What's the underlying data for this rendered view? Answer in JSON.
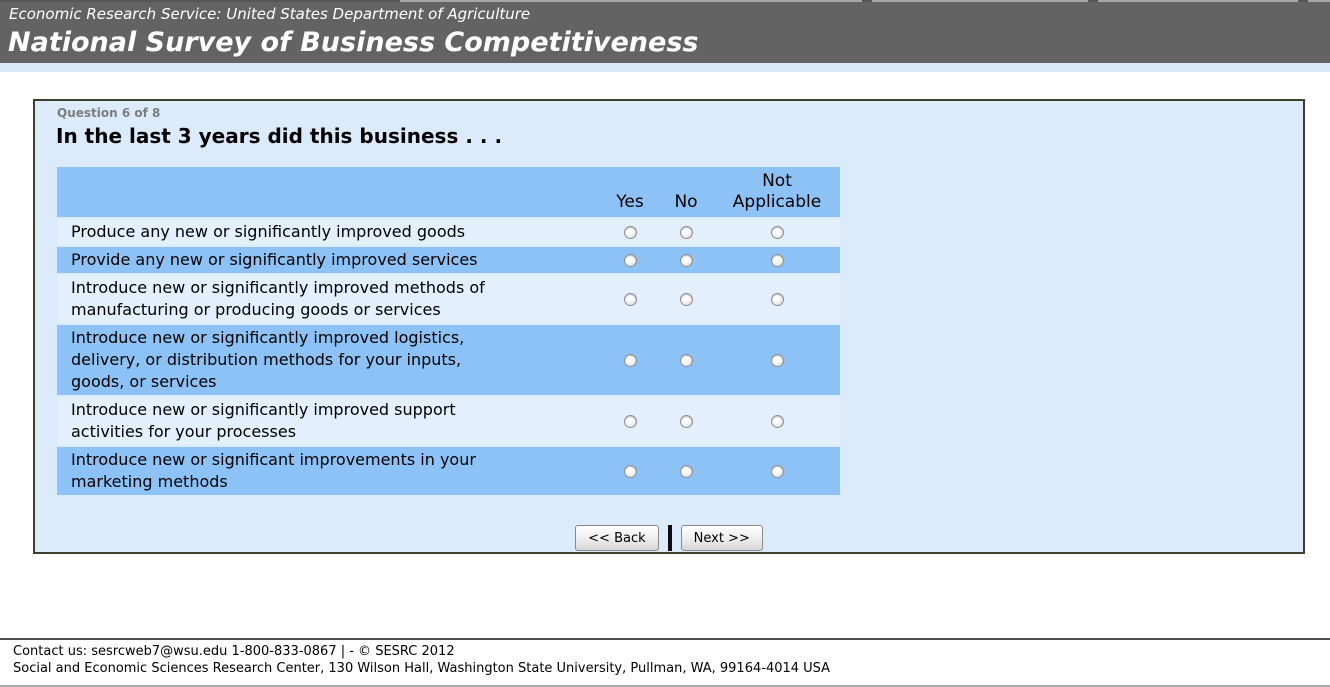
{
  "header": {
    "agency": "Economic Research Service: United States Department of Agriculture",
    "title": "National Survey of Business Competitiveness"
  },
  "survey": {
    "progress": "Question 6 of 8",
    "question": "In the last 3 years did this business . . ."
  },
  "matrix": {
    "columns": [
      "Yes",
      "No",
      "Not\nApplicable"
    ],
    "options": [
      "Yes",
      "No",
      "Not Applicable"
    ],
    "rows": [
      {
        "label": "Produce any new or significantly improved goods"
      },
      {
        "label": "Provide any new or significantly improved services"
      },
      {
        "label": "Introduce new or significantly improved methods of\nmanufacturing or producing goods or services"
      },
      {
        "label": "Introduce new or significantly improved logistics,\ndelivery, or distribution methods for your inputs,\ngoods, or services"
      },
      {
        "label": "Introduce new or significantly improved support\nactivities for your processes"
      },
      {
        "label": "Introduce new or significant improvements  in your\nmarketing methods"
      }
    ]
  },
  "navigation": {
    "back": "<< Back",
    "next": "Next >>"
  },
  "footer": {
    "contact": "Contact us: sesrcweb7@wsu.edu 1-800-833-0867 | - © SESRC 2012",
    "address": "Social and Economic Sciences Research Center, 130 Wilson Hall, Washington State University, Pullman, WA, 99164-4014 USA"
  },
  "colors": {
    "header_bg": "#636363",
    "accent_strip": "#d9e8fa",
    "panel_bg": "#dcebfb",
    "panel_border": "#3e3e2c",
    "row_highlight": "#8cc2f5",
    "row_light": "#e3effd"
  }
}
